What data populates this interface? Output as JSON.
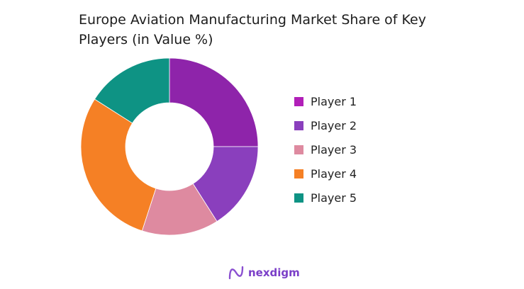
{
  "chart_data": {
    "type": "pie",
    "variant": "donut",
    "title": "Europe Aviation Manufacturing Market Share of Key Players (in Value %)",
    "categories": [
      "Player 1",
      "Player 2",
      "Player 3",
      "Player 4",
      "Player 5"
    ],
    "values": [
      25,
      16,
      14,
      29,
      16
    ],
    "colors": [
      "#8e24aa",
      "#8a3fbd",
      "#de8aa0",
      "#f58025",
      "#0e9384"
    ],
    "legend_colors": [
      "#b11fb8",
      "#8a3fbd",
      "#de8aa0",
      "#f58025",
      "#0e9384"
    ],
    "legend_position": "right",
    "start_angle": "top, clockwise"
  },
  "branding": {
    "logo_text": "nexdigm"
  }
}
